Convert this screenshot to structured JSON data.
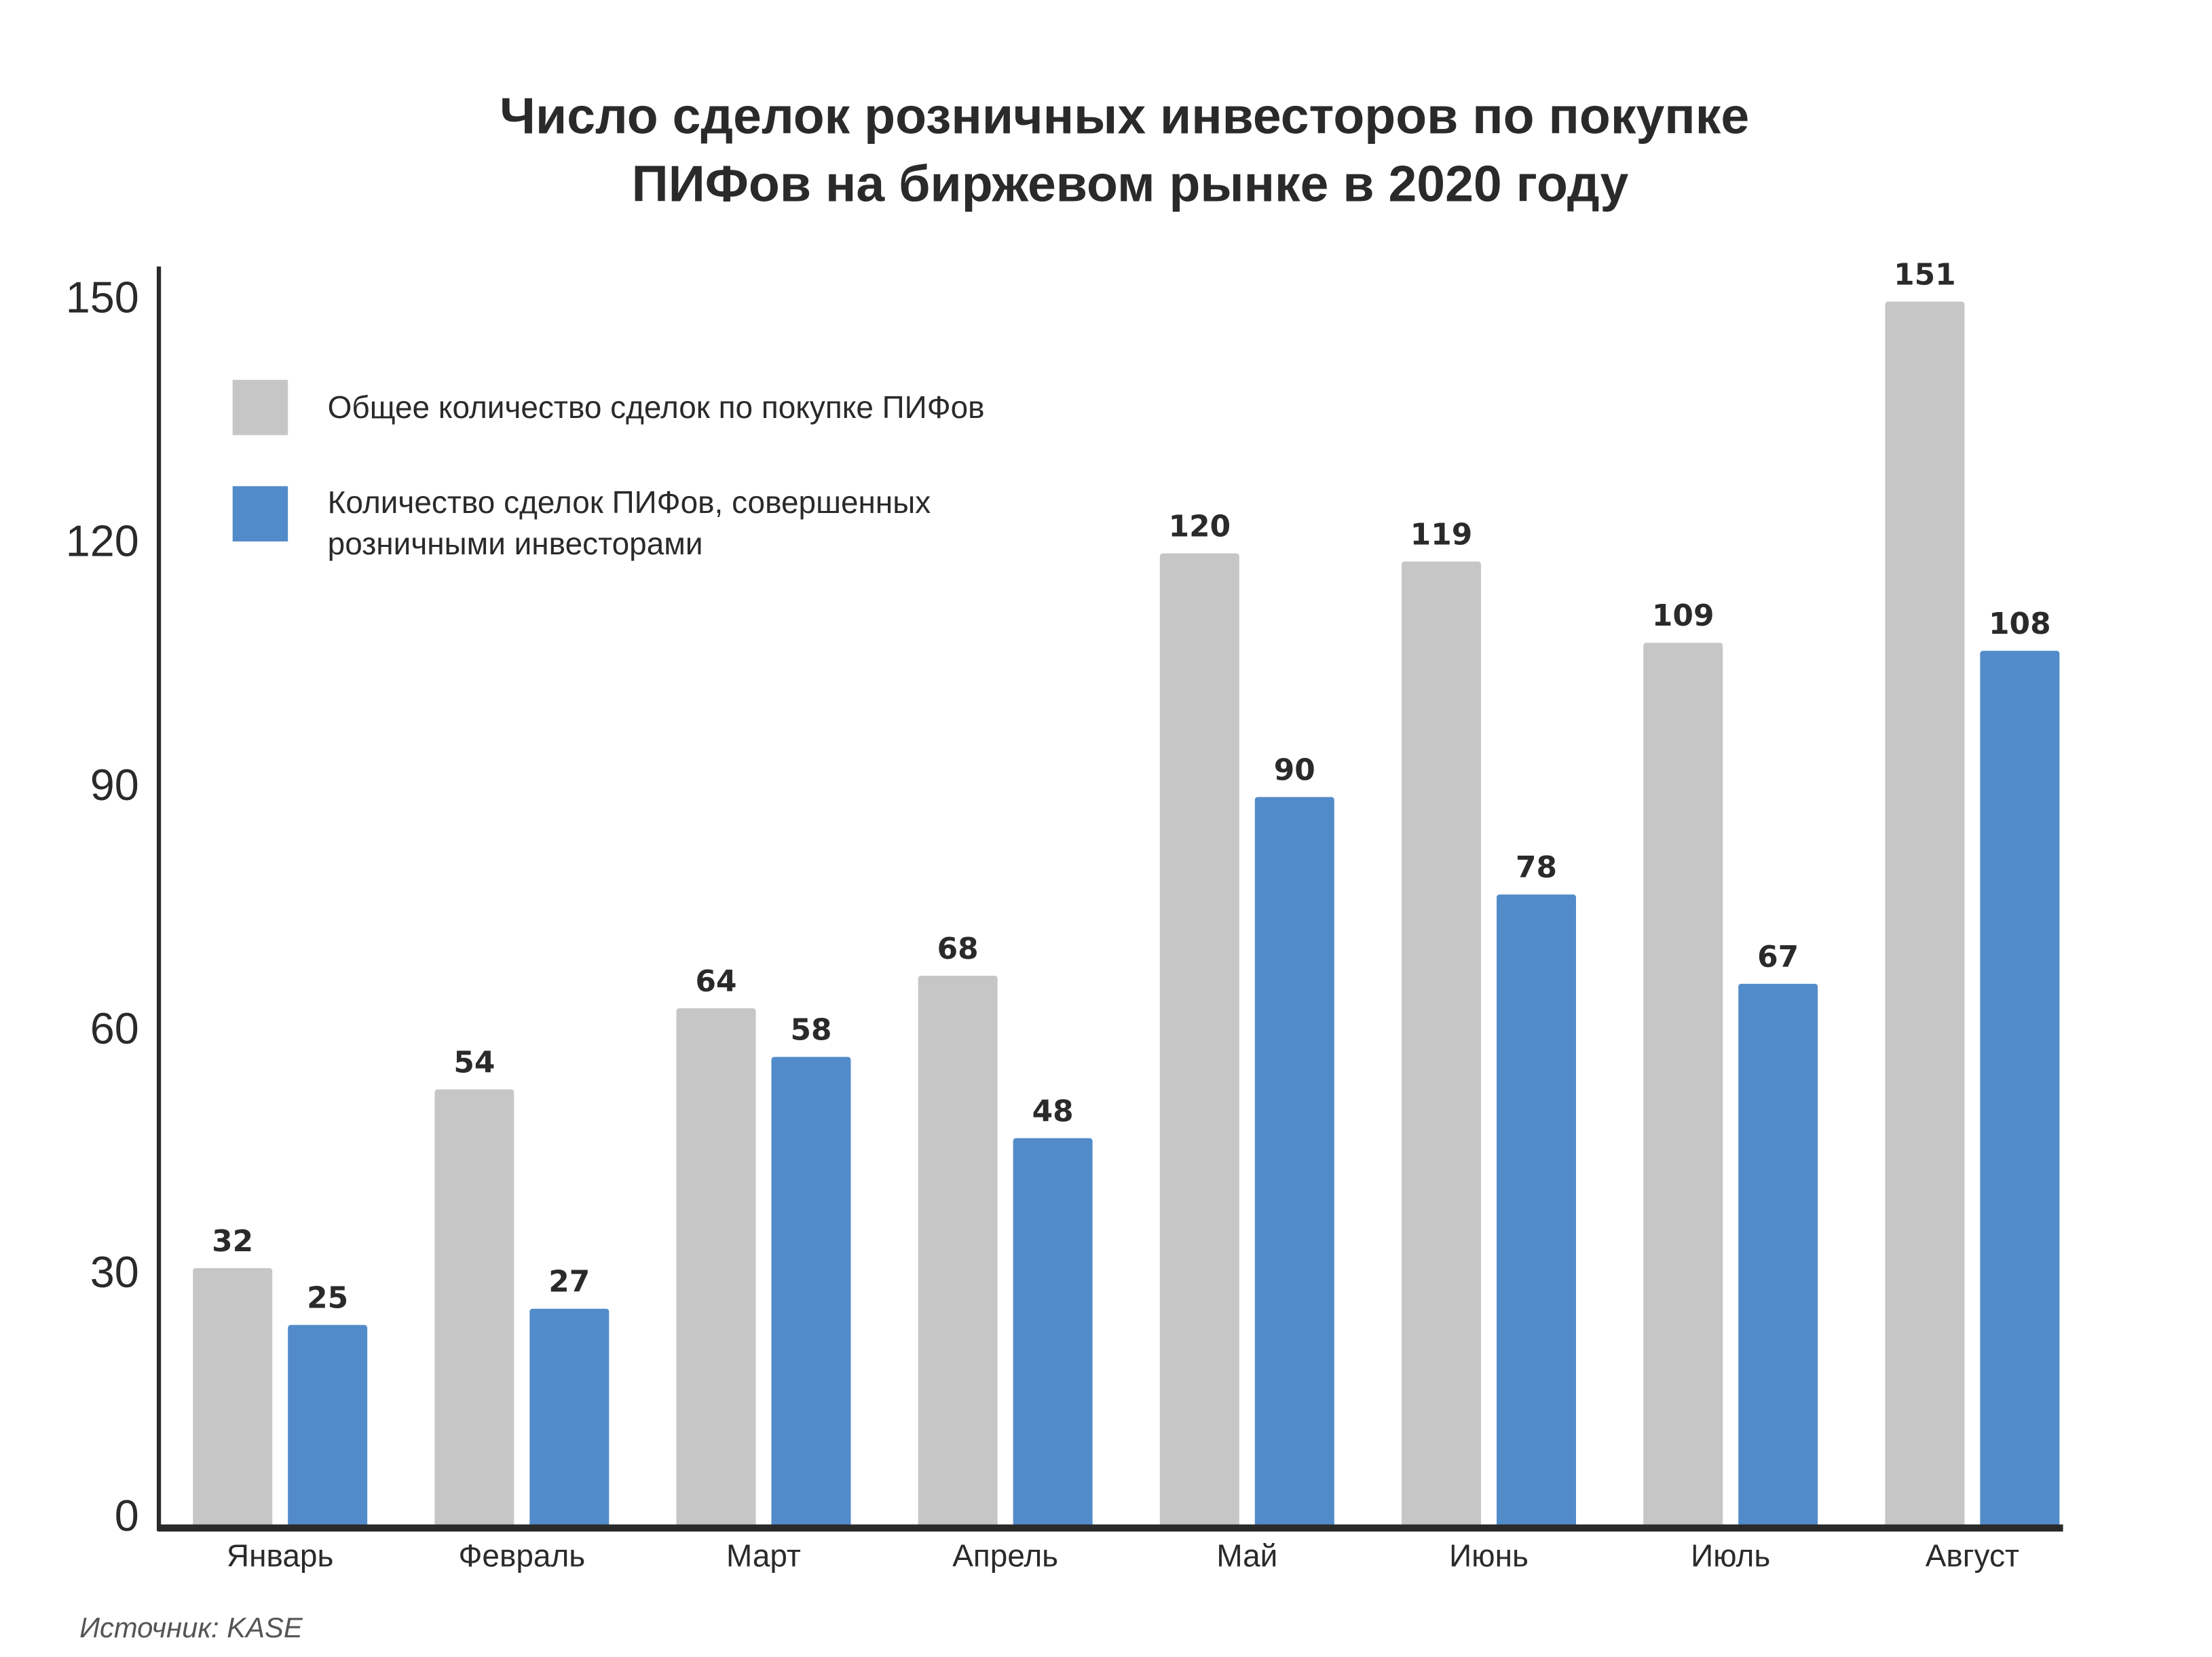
{
  "chart_data": {
    "type": "bar",
    "title": [
      "Число сделок розничных инвесторов по покупке",
      "ПИФов на биржевом рынке в 2020 году"
    ],
    "categories": [
      "Январь",
      "Февраль",
      "Март",
      "Апрель",
      "Май",
      "Июнь",
      "Июль",
      "Август"
    ],
    "series": [
      {
        "name": "Общее количество сделок по покупке ПИФов",
        "color": "#c6c6c6",
        "values": [
          32,
          54,
          64,
          68,
          120,
          119,
          109,
          151
        ]
      },
      {
        "name": "Количество сделок ПИФов, совершенных розничными инвесторами",
        "color": "#528bc9",
        "values": [
          25,
          27,
          58,
          48,
          90,
          78,
          67,
          108
        ]
      }
    ],
    "legend_lines": [
      [
        "Общее количество сделок по покупке ПИФов"
      ],
      [
        "Количество сделок ПИФов, совершенных",
        "розничными инвесторами"
      ]
    ],
    "yticks": [
      "0",
      "30",
      "60",
      "90",
      "120",
      "150"
    ],
    "ylim": [
      0,
      150
    ],
    "grid": false,
    "legend_position": "top-left",
    "xlabel": "",
    "ylabel": "",
    "source": "Источник: KASE"
  }
}
